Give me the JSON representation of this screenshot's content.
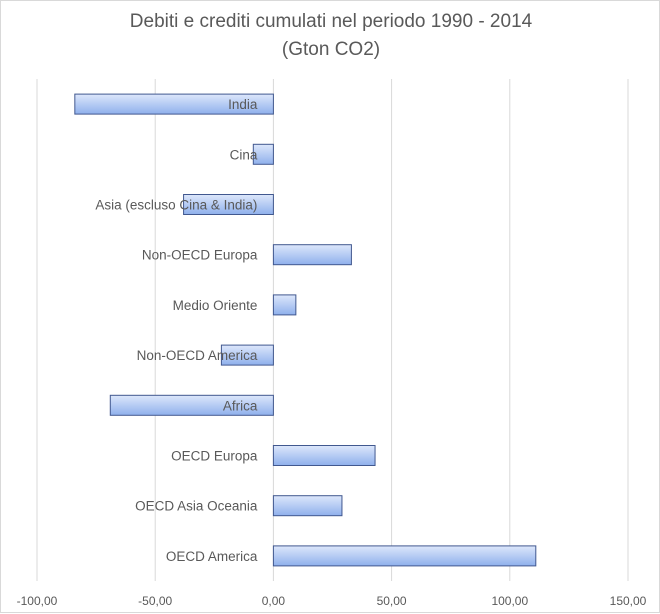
{
  "chart_data": {
    "type": "bar",
    "orientation": "horizontal",
    "title": "Debiti e crediti cumulati nel periodo 1990 - 2014",
    "subtitle": "(Gton CO2)",
    "categories": [
      "India",
      "Cina",
      "Asia (escluso Cina & India)",
      "Non-OECD Europa",
      "Medio Oriente",
      "Non-OECD America",
      "Africa",
      "OECD Europa",
      "OECD Asia Oceania",
      "OECD America"
    ],
    "values": [
      -84,
      -8.5,
      -38,
      33,
      9.5,
      -22,
      -69,
      43,
      29,
      111
    ],
    "xlim": [
      -100,
      150
    ],
    "x_ticks": [
      -100,
      -50,
      0,
      50,
      100,
      150
    ],
    "x_tick_labels": [
      "-100,00",
      "-50,00",
      "0,00",
      "50,00",
      "100,00",
      "150,00"
    ],
    "grid": "vertical",
    "legend": "none",
    "colors": {
      "bar_fill_top": "#dde7fb",
      "bar_fill_bottom": "#8fb0ec",
      "bar_stroke": "#41588f",
      "grid": "#d9d9d9",
      "text": "#595959"
    }
  }
}
